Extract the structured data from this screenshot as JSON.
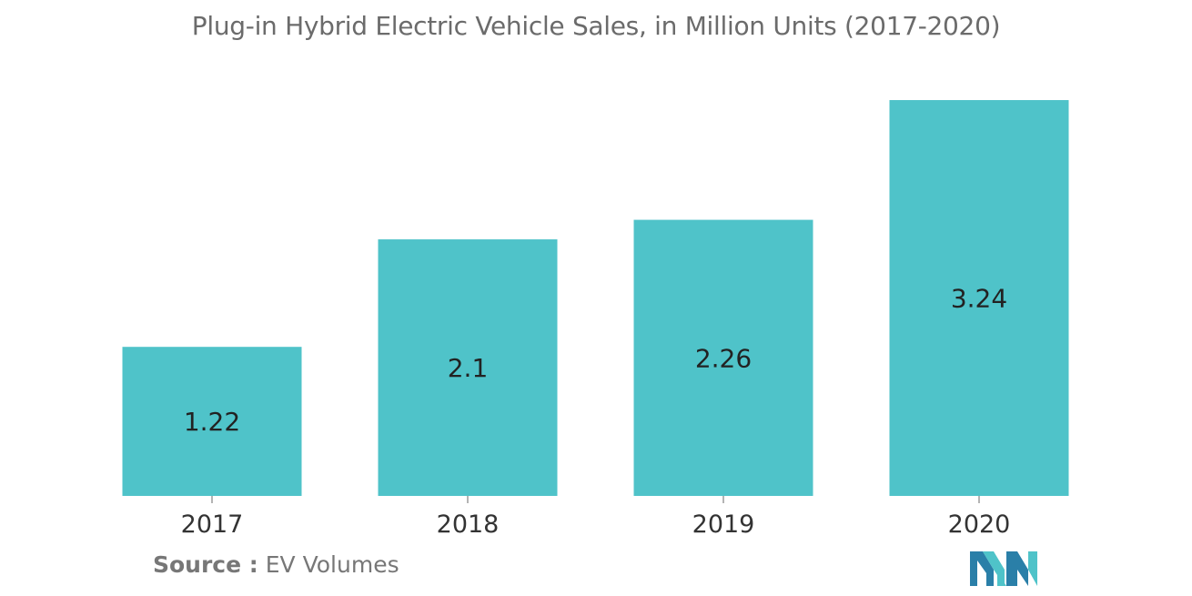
{
  "chart_data": {
    "type": "bar",
    "title": "Plug-in Hybrid Electric Vehicle Sales, in Million Units (2017-2020)",
    "categories": [
      "2017",
      "2018",
      "2019",
      "2020"
    ],
    "values": [
      1.22,
      2.1,
      2.26,
      3.24
    ],
    "value_labels": [
      "1.22",
      "2.1",
      "2.26",
      "3.24"
    ],
    "xlabel": "",
    "ylabel": "",
    "ylim": [
      0,
      3.24
    ],
    "grid": false,
    "legend": "none",
    "bar_color": "#4fc3c9"
  },
  "source": {
    "label": "Source :",
    "text": "EV Volumes"
  },
  "colors": {
    "bar": "#4fc3c9",
    "logo_dark": "#2a7fa8",
    "logo_light": "#4fc3c9"
  }
}
